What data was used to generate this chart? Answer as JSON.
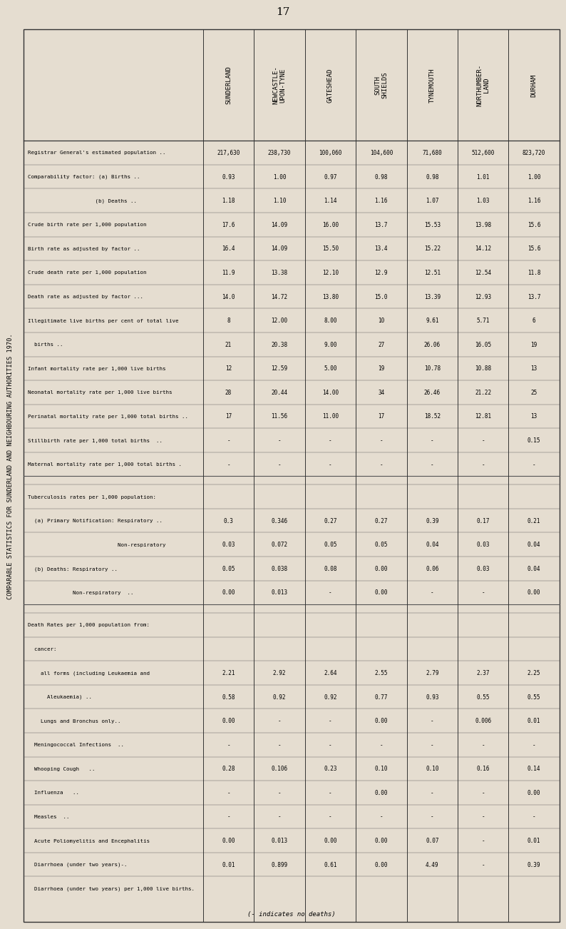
{
  "title": "COMPARABLE STATISTICS FOR SUNDERLAND AND NEIGHBOURING AUTHORITIES 1970.",
  "page_number": "17",
  "bg_color": "#e5ddd0",
  "columns": [
    "SUNDERLAND",
    "NEWCASTLE-\nUPON-TYNE",
    "GATESHEAD",
    "SOUTH\nSHIELDS",
    "TYNEMOUTH",
    "NORTHUMBER-\nLAND",
    "DURHAM"
  ],
  "rows": [
    {
      "label": "Registrar General's estimated population ..",
      "indent": 0,
      "data": [
        "217,630",
        "238,730",
        "100,060",
        "104,600",
        "71,680",
        "512,600",
        "823,720"
      ]
    },
    {
      "label": "Comparability factor: (a) Births ..",
      "indent": 0,
      "data": [
        "0.93",
        "1.00",
        "0.97",
        "0.98",
        "0.98",
        "1.01",
        "1.00"
      ]
    },
    {
      "label": "                     (b) Deaths ..",
      "indent": 0,
      "data": [
        "1.18",
        "1.10",
        "1.14",
        "1.16",
        "1.07",
        "1.03",
        "1.16"
      ]
    },
    {
      "label": "Crude birth rate per 1,000 population",
      "indent": 0,
      "data": [
        "17.6",
        "14.09",
        "16.00",
        "13.7",
        "15.53",
        "13.98",
        "15.6"
      ]
    },
    {
      "label": "Birth rate as adjusted by factor ..",
      "indent": 0,
      "data": [
        "16.4",
        "14.09",
        "15.50",
        "13.4",
        "15.22",
        "14.12",
        "15.6"
      ]
    },
    {
      "label": "Crude death rate per 1,000 population",
      "indent": 0,
      "data": [
        "11.9",
        "13.38",
        "12.10",
        "12.9",
        "12.51",
        "12.54",
        "11.8"
      ]
    },
    {
      "label": "Death rate as adjusted by factor ...",
      "indent": 0,
      "data": [
        "14.0",
        "14.72",
        "13.80",
        "15.0",
        "13.39",
        "12.93",
        "13.7"
      ]
    },
    {
      "label": "Illegitimate live births per cent of total live",
      "indent": 0,
      "data": [
        "8",
        "12.00",
        "8.00",
        "10",
        "9.61",
        "5.71",
        "6"
      ]
    },
    {
      "label": "  births ..",
      "indent": 0,
      "data": [
        "21",
        "20.38",
        "9.00",
        "27",
        "26.06",
        "16.05",
        "19"
      ]
    },
    {
      "label": "Infant mortality rate per 1,000 live births",
      "indent": 0,
      "data": [
        "12",
        "12.59",
        "5.00",
        "19",
        "10.78",
        "10.88",
        "13"
      ]
    },
    {
      "label": "Neonatal mortality rate per 1,000 live births",
      "indent": 0,
      "data": [
        "28",
        "20.44",
        "14.00",
        "34",
        "26.46",
        "21.22",
        "25"
      ]
    },
    {
      "label": "Perinatal mortality rate per 1,000 total births ..",
      "indent": 0,
      "data": [
        "17",
        "11.56",
        "11.00",
        "17",
        "18.52",
        "12.81",
        "13"
      ]
    },
    {
      "label": "Stillbirth rate per 1,000 total births  ..",
      "indent": 0,
      "data": [
        "-",
        "-",
        "-",
        "-",
        "-",
        "-",
        "0.15"
      ]
    },
    {
      "label": "Maternal mortality rate per 1,000 total births .",
      "indent": 0,
      "data": [
        "-",
        "-",
        "-",
        "-",
        "-",
        "-",
        "-"
      ]
    },
    {
      "label": "",
      "indent": 0,
      "data": [
        "",
        "",
        "",
        "",
        "",
        "",
        ""
      ],
      "separator": true
    },
    {
      "label": "Tuberculosis rates per 1,000 population:",
      "indent": 0,
      "data": [
        "",
        "",
        "",
        "",
        "",
        "",
        ""
      ]
    },
    {
      "label": "  (a) Primary Notification: Respiratory ..",
      "indent": 0,
      "data": [
        "0.3",
        "0.346",
        "0.27",
        "0.27",
        "0.39",
        "0.17",
        "0.21"
      ]
    },
    {
      "label": "                            Non-respiratory",
      "indent": 0,
      "data": [
        "0.03",
        "0.072",
        "0.05",
        "0.05",
        "0.04",
        "0.03",
        "0.04"
      ]
    },
    {
      "label": "  (b) Deaths: Respiratory ..",
      "indent": 0,
      "data": [
        "0.05",
        "0.038",
        "0.08",
        "0.00",
        "0.06",
        "0.03",
        "0.04"
      ]
    },
    {
      "label": "              Non-respiratory  ..",
      "indent": 0,
      "data": [
        "0.00",
        "0.013",
        "-",
        "0.00",
        "-",
        "-",
        "0.00"
      ]
    },
    {
      "label": "",
      "indent": 0,
      "data": [
        "",
        "",
        "",
        "",
        "",
        "",
        ""
      ],
      "separator": true
    },
    {
      "label": "Death Rates per 1,000 population from:",
      "indent": 0,
      "data": [
        "",
        "",
        "",
        "",
        "",
        "",
        ""
      ]
    },
    {
      "label": "  cancer:",
      "indent": 0,
      "data": [
        "",
        "",
        "",
        "",
        "",
        "",
        ""
      ]
    },
    {
      "label": "    all forms (including Leukaemia and",
      "indent": 0,
      "data": [
        "2.21",
        "2.92",
        "2.64",
        "2.55",
        "2.79",
        "2.37",
        "2.25"
      ]
    },
    {
      "label": "      Aleukaemia) ..",
      "indent": 0,
      "data": [
        "0.58",
        "0.92",
        "0.92",
        "0.77",
        "0.93",
        "0.55",
        "0.55"
      ]
    },
    {
      "label": "    Lungs and Bronchus only..",
      "indent": 0,
      "data": [
        "0.00",
        "-",
        "-",
        "0.00",
        "-",
        "0.006",
        "0.01"
      ]
    },
    {
      "label": "  Meningococcal Infections  ..",
      "indent": 0,
      "data": [
        "-",
        "-",
        "-",
        "-",
        "-",
        "-",
        "-"
      ]
    },
    {
      "label": "  Whooping Cough   ..",
      "indent": 0,
      "data": [
        "0.28",
        "0.106",
        "0.23",
        "0.10",
        "0.10",
        "0.16",
        "0.14"
      ]
    },
    {
      "label": "  Influenza   ..",
      "indent": 0,
      "data": [
        "-",
        "-",
        "-",
        "0.00",
        "-",
        "-",
        "0.00"
      ]
    },
    {
      "label": "  Measles  ..",
      "indent": 0,
      "data": [
        "-",
        "-",
        "-",
        "-",
        "-",
        "-",
        "-"
      ]
    },
    {
      "label": "  Acute Poliomyelitis and Encephalitis",
      "indent": 0,
      "data": [
        "0.00",
        "0.013",
        "0.00",
        "0.00",
        "0.07",
        "-",
        "0.01"
      ]
    },
    {
      "label": "  Diarrhoea (under two years)-.",
      "indent": 0,
      "data": [
        "0.01",
        "0.899",
        "0.61",
        "0.00",
        "4.49",
        "-",
        "0.39"
      ]
    },
    {
      "label": "  Diarrhoea (under two years) per 1,000 live births.",
      "indent": 0,
      "data": [
        "",
        "",
        "",
        "",
        "",
        "",
        ""
      ]
    }
  ],
  "footnote": "(- indicates no deaths)"
}
